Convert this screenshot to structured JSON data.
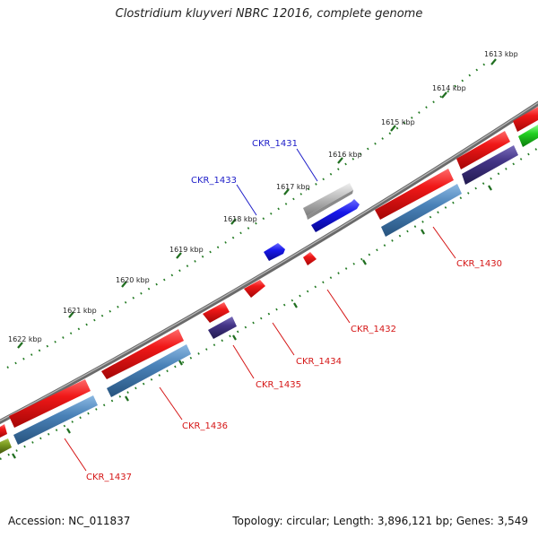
{
  "title": "Clostridium kluyveri NBRC 12016, complete genome",
  "footer": {
    "accession": "Accession: NC_011837",
    "summary": "Topology: circular; Length: 3,896,121 bp; Genes: 3,549"
  },
  "scale_labels": [
    "1613 kbp",
    "1614 kbp",
    "1615 kbp",
    "1616 kbp",
    "1617 kbp",
    "1618 kbp",
    "1619 kbp",
    "1620 kbp",
    "1621 kbp",
    "1622 kbp"
  ],
  "gene_labels": [
    "CKR_1431",
    "CKR_1433",
    "CKR_1430",
    "CKR_1432",
    "CKR_1434",
    "CKR_1435",
    "CKR_1436",
    "CKR_1437"
  ],
  "colors": {
    "cds_forward": "#ee1111",
    "cds_reverse": "#3a2c7a",
    "blue_gene": "#1818e8",
    "gray_gene": "#b4b4b4",
    "steel_track": "#4d83b8",
    "backbone": "#7a7a7a",
    "tick_green": "#227a22",
    "label_blue": "#1c1cc8",
    "label_red": "#d51515"
  }
}
